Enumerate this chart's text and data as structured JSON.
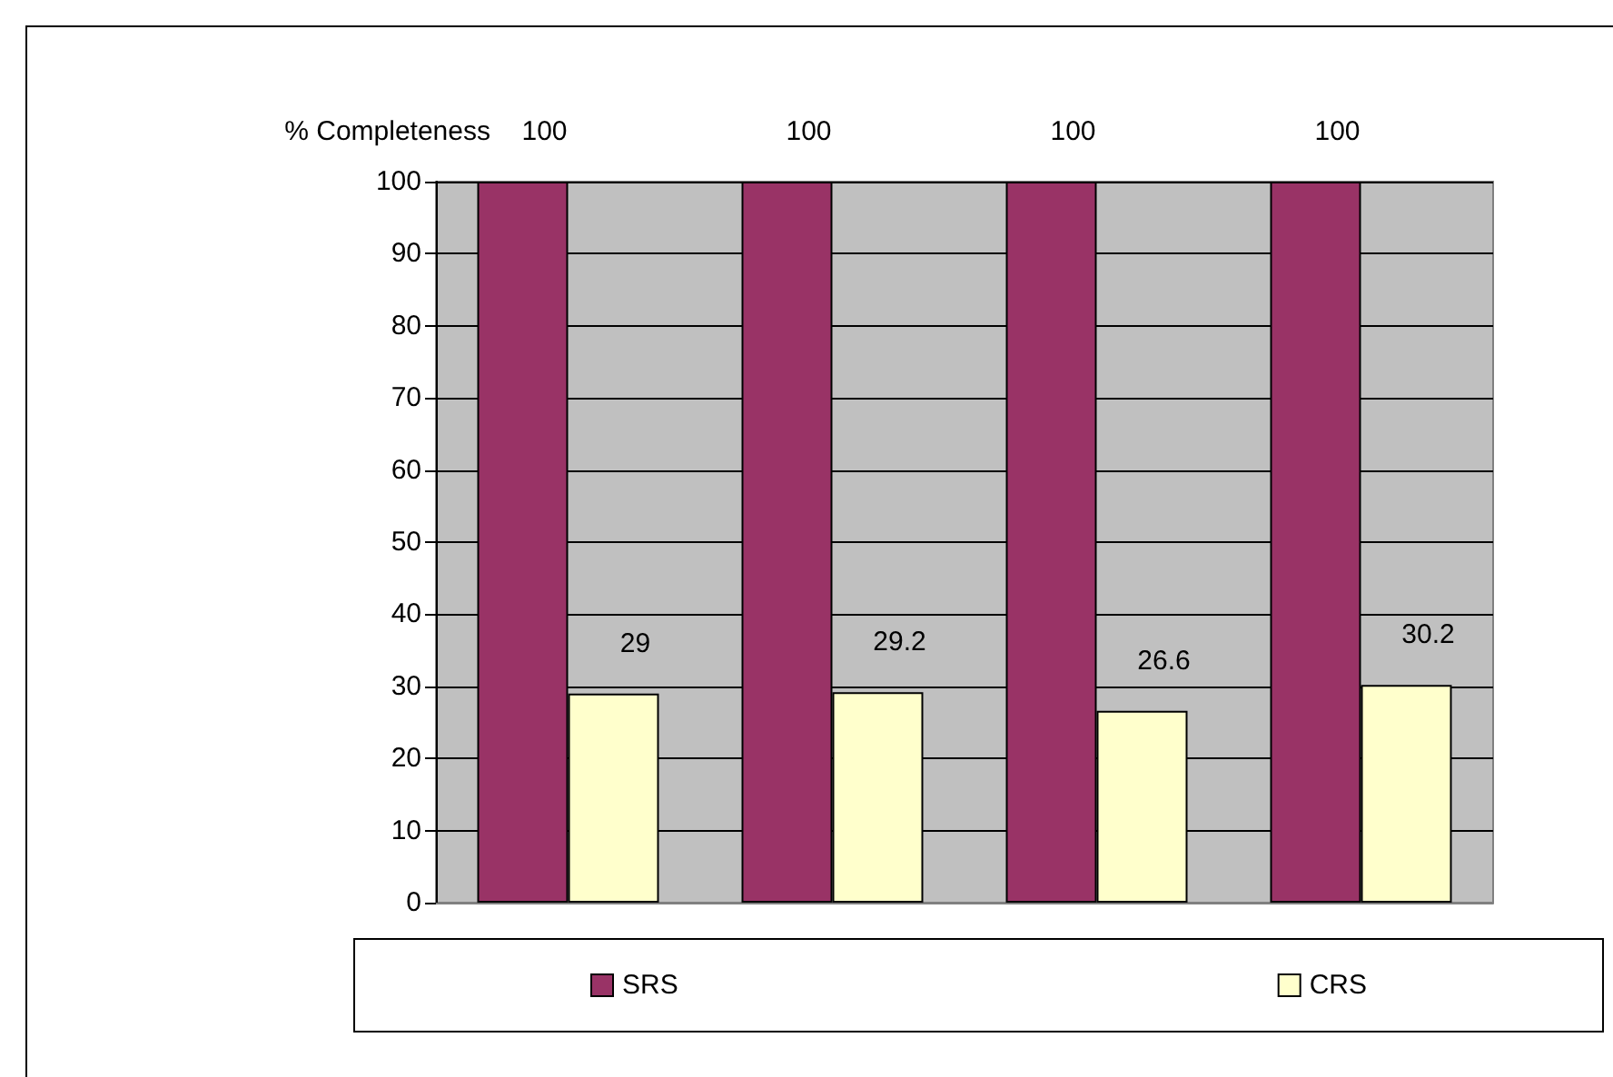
{
  "chart_data": {
    "type": "bar",
    "ylabel": "% Completeness",
    "categories": [
      null,
      null,
      null,
      null
    ],
    "series": [
      {
        "name": "SRS",
        "color": "#993366",
        "values": [
          100,
          100,
          100,
          100
        ]
      },
      {
        "name": "CRS",
        "color": "#ffffcc",
        "values": [
          29,
          29.2,
          26.6,
          30.2
        ]
      }
    ],
    "ylim": [
      0,
      100
    ],
    "yticks": [
      0,
      10,
      20,
      30,
      40,
      50,
      60,
      70,
      80,
      90,
      100
    ],
    "grid": "y",
    "legend": "bottom",
    "data_labels": true
  }
}
